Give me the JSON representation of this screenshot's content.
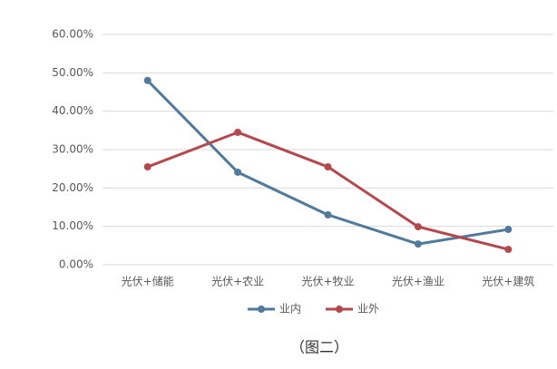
{
  "chart_data": {
    "type": "line",
    "categories": [
      "光伏+储能",
      "光伏+农业",
      "光伏+牧业",
      "光伏+渔业",
      "光伏+建筑"
    ],
    "series": [
      {
        "name": "业内",
        "color": "#50799e",
        "values": [
          48.0,
          24.1,
          13.0,
          5.4,
          9.2
        ]
      },
      {
        "name": "业外",
        "color": "#b5484c",
        "values": [
          25.5,
          34.5,
          25.5,
          9.9,
          4.0
        ]
      }
    ],
    "ylim": [
      0,
      60
    ],
    "yticks": [
      {
        "value": 0,
        "label": "0.00%"
      },
      {
        "value": 10,
        "label": "10.00%"
      },
      {
        "value": 20,
        "label": "20.00%"
      },
      {
        "value": 30,
        "label": "30.00%"
      },
      {
        "value": 40,
        "label": "40.00%"
      },
      {
        "value": 50,
        "label": "50.00%"
      },
      {
        "value": 60,
        "label": "60.00%"
      }
    ],
    "grid": true,
    "legend": "bottom",
    "caption": "（图二）"
  }
}
